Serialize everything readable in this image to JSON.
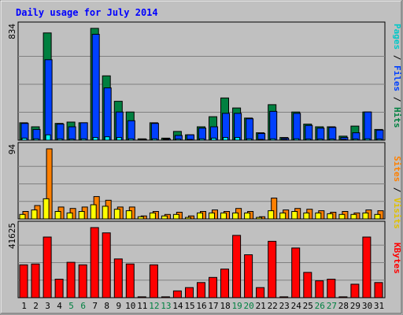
{
  "chart_data": [
    {
      "type": "bar",
      "title": "Daily usage for July 2014",
      "categories": [
        "1",
        "2",
        "3",
        "4",
        "5",
        "6",
        "7",
        "8",
        "9",
        "10",
        "11",
        "12",
        "13",
        "14",
        "15",
        "16",
        "17",
        "18",
        "19",
        "20",
        "21",
        "22",
        "23",
        "24",
        "25",
        "26",
        "27",
        "28",
        "29",
        "30",
        "31"
      ],
      "weekend_days": [
        "5",
        "6",
        "12",
        "13",
        "19",
        "20",
        "26",
        "27"
      ],
      "y_max_label": "834",
      "ylim": [
        0,
        834
      ],
      "grid": true,
      "legend": [
        "Pages",
        "Files",
        "Hits"
      ],
      "series": [
        {
          "name": "Hits",
          "color": "#008040",
          "values": [
            130,
            100,
            800,
            125,
            135,
            130,
            834,
            480,
            290,
            210,
            10,
            130,
            15,
            65,
            40,
            100,
            175,
            315,
            240,
            165,
            55,
            265,
            20,
            210,
            120,
            100,
            100,
            30,
            105,
            210,
            80
          ]
        },
        {
          "name": "Files",
          "color": "#0040ff",
          "values": [
            125,
            80,
            600,
            120,
            100,
            130,
            790,
            390,
            210,
            145,
            5,
            125,
            10,
            35,
            40,
            90,
            100,
            200,
            200,
            160,
            50,
            215,
            15,
            200,
            110,
            90,
            95,
            20,
            55,
            210,
            75
          ]
        },
        {
          "name": "Pages",
          "color": "#00ffff",
          "values": [
            15,
            10,
            40,
            10,
            8,
            10,
            20,
            25,
            20,
            10,
            2,
            10,
            5,
            8,
            5,
            10,
            15,
            20,
            20,
            10,
            5,
            10,
            3,
            10,
            8,
            8,
            8,
            3,
            8,
            10,
            8
          ]
        }
      ]
    },
    {
      "type": "bar",
      "y_max_label": "94",
      "ylim": [
        0,
        94
      ],
      "grid": true,
      "legend": [
        "Sites",
        "Visits"
      ],
      "series": [
        {
          "name": "Visits",
          "color": "#ff8000",
          "values": [
            10,
            18,
            94,
            16,
            14,
            16,
            30,
            25,
            16,
            16,
            4,
            10,
            6,
            9,
            4,
            10,
            12,
            10,
            14,
            10,
            3,
            28,
            12,
            14,
            13,
            11,
            9,
            10,
            8,
            12,
            11
          ]
        },
        {
          "name": "Sites",
          "color": "#ffff00",
          "values": [
            6,
            12,
            27,
            10,
            8,
            10,
            19,
            17,
            13,
            11,
            3,
            8,
            4,
            6,
            2,
            8,
            8,
            8,
            8,
            8,
            2,
            11,
            8,
            10,
            8,
            8,
            7,
            6,
            6,
            8,
            6
          ]
        }
      ]
    },
    {
      "type": "bar",
      "y_max_label": "41625",
      "ylim": [
        0,
        41625
      ],
      "grid": true,
      "legend": [
        "KBytes"
      ],
      "series": [
        {
          "name": "KBytes",
          "color": "#ff0000",
          "values": [
            19500,
            20000,
            36000,
            11000,
            21000,
            19500,
            41625,
            38500,
            23000,
            20000,
            500,
            19500,
            500,
            4000,
            6000,
            9000,
            12000,
            17000,
            37000,
            25500,
            6000,
            33500,
            500,
            29500,
            15000,
            10000,
            11000,
            500,
            8000,
            36000,
            9000
          ]
        }
      ]
    }
  ]
}
